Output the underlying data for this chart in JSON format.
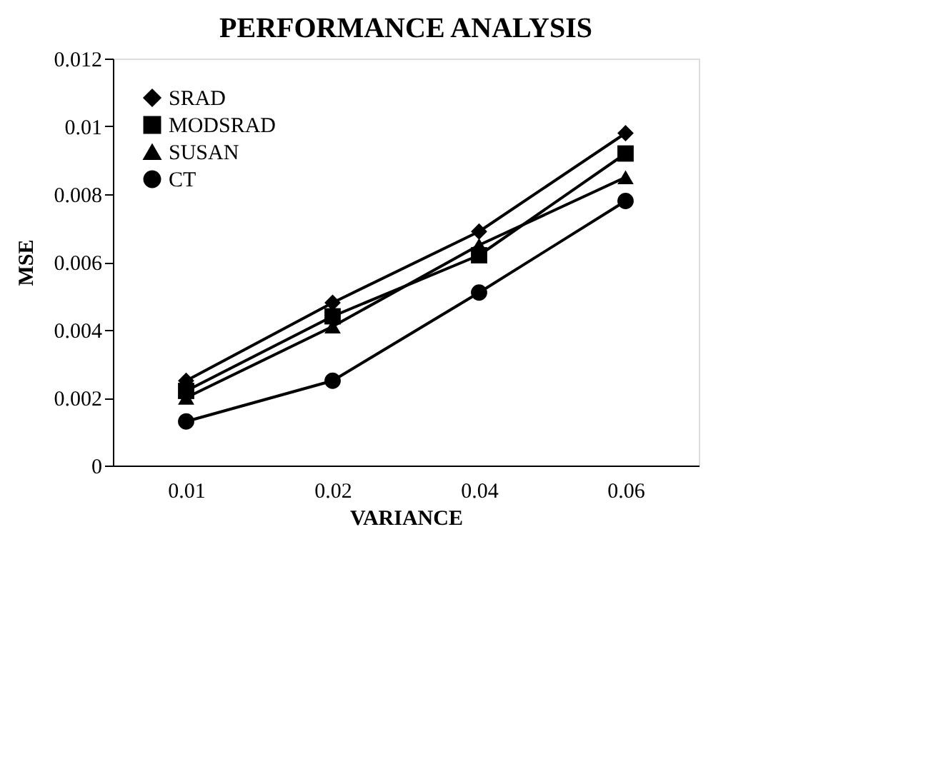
{
  "chart_data": {
    "type": "line",
    "title": "PERFORMANCE ANALYSIS",
    "xlabel": "VARIANCE",
    "ylabel": "MSE",
    "categories": [
      "0.01",
      "0.02",
      "0.04",
      "0.06"
    ],
    "series": [
      {
        "name": "SRAD",
        "color": "#000000",
        "marker": "diamond",
        "values": [
          0.0025,
          0.0048,
          0.0069,
          0.0098
        ]
      },
      {
        "name": "MODSRAD",
        "color": "#000000",
        "marker": "square",
        "values": [
          0.0022,
          0.0044,
          0.0062,
          0.0092
        ]
      },
      {
        "name": "SUSAN",
        "color": "#000000",
        "marker": "triangle",
        "values": [
          0.002,
          0.0041,
          0.0065,
          0.0085
        ]
      },
      {
        "name": "CT",
        "color": "#000000",
        "marker": "circle",
        "values": [
          0.0013,
          0.0025,
          0.0051,
          0.0078
        ]
      }
    ],
    "ylim": [
      0,
      0.012
    ],
    "yticks": [
      0,
      0.002,
      0.004,
      0.006,
      0.008,
      0.01,
      0.012
    ],
    "grid": false,
    "legend": "top left",
    "line_style": "solid"
  }
}
